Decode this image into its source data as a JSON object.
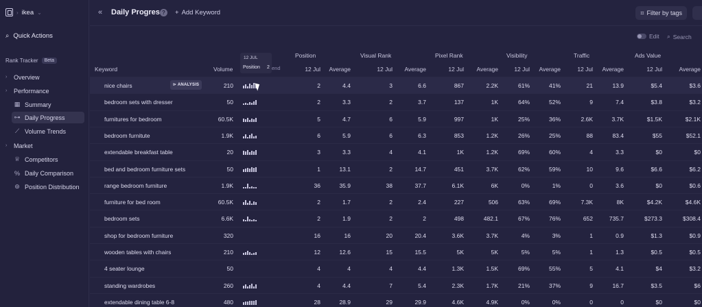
{
  "sidebar": {
    "workspace": "ikea",
    "quick_actions": "Quick Actions",
    "section": "Rank Tracker",
    "section_badge": "Beta",
    "items": [
      {
        "label": "Overview",
        "type": "group"
      },
      {
        "label": "Performance",
        "type": "group"
      },
      {
        "label": "Summary",
        "type": "link"
      },
      {
        "label": "Daily Progress",
        "type": "link"
      },
      {
        "label": "Volume Trends",
        "type": "link"
      },
      {
        "label": "Market",
        "type": "group"
      },
      {
        "label": "Competitors",
        "type": "link"
      },
      {
        "label": "Daily Comparison",
        "type": "link"
      },
      {
        "label": "Position Distribution",
        "type": "link"
      }
    ]
  },
  "header": {
    "title": "Daily Progress",
    "add_keyword": "Add Keyword",
    "filter": "Filter by tags"
  },
  "toolbar": {
    "edit": "Edit",
    "search": "Search"
  },
  "table": {
    "keyword_header": "Keyword",
    "volume_header": "Volume",
    "trend_popup": {
      "date": "12 JUL",
      "label": "Position",
      "value": "2"
    },
    "trend_label": "end",
    "groups": [
      "Position",
      "Visual Rank",
      "Pixel Rank",
      "Visibility",
      "Traffic",
      "Ads Value"
    ],
    "sub_date": "12 Jul",
    "sub_avg": "Average",
    "analysis_badge": "ANALYSIS",
    "rows": [
      {
        "kw": "nice chairs",
        "vol": "210",
        "v": [
          "2",
          "4.4",
          "3",
          "6.6",
          "867",
          "2.2K",
          "61%",
          "41%",
          "21",
          "13.9",
          "$5.4",
          "$3.6"
        ]
      },
      {
        "kw": "bedroom sets with dresser",
        "vol": "50",
        "v": [
          "2",
          "3.3",
          "2",
          "3.7",
          "137",
          "1K",
          "64%",
          "52%",
          "9",
          "7.4",
          "$3.8",
          "$3.2"
        ]
      },
      {
        "kw": "furnitures for bedroom",
        "vol": "60.5K",
        "v": [
          "5",
          "4.7",
          "6",
          "5.9",
          "997",
          "1K",
          "25%",
          "36%",
          "2.6K",
          "3.7K",
          "$1.5K",
          "$2.1K"
        ]
      },
      {
        "kw": "bedroom furnitute",
        "vol": "1.9K",
        "v": [
          "6",
          "5.9",
          "6",
          "6.3",
          "853",
          "1.2K",
          "26%",
          "25%",
          "88",
          "83.4",
          "$55",
          "$52.1"
        ]
      },
      {
        "kw": "extendable breakfast table",
        "vol": "20",
        "v": [
          "3",
          "3.3",
          "4",
          "4.1",
          "1K",
          "1.2K",
          "69%",
          "60%",
          "4",
          "3.3",
          "$0",
          "$0"
        ]
      },
      {
        "kw": "bed and bedroom furniture sets",
        "vol": "50",
        "v": [
          "1",
          "13.1",
          "2",
          "14.7",
          "451",
          "3.7K",
          "62%",
          "59%",
          "10",
          "9.6",
          "$6.6",
          "$6.2"
        ]
      },
      {
        "kw": "range bedroom furniture",
        "vol": "1.9K",
        "v": [
          "36",
          "35.9",
          "38",
          "37.7",
          "6.1K",
          "6K",
          "0%",
          "1%",
          "0",
          "3.6",
          "$0",
          "$0.6"
        ]
      },
      {
        "kw": "furniture for bed room",
        "vol": "60.5K",
        "v": [
          "2",
          "1.7",
          "2",
          "2.4",
          "227",
          "506",
          "63%",
          "69%",
          "7.3K",
          "8K",
          "$4.2K",
          "$4.6K"
        ]
      },
      {
        "kw": "bedroom sets",
        "vol": "6.6K",
        "v": [
          "2",
          "1.9",
          "2",
          "2",
          "498",
          "482.1",
          "67%",
          "76%",
          "652",
          "735.7",
          "$273.3",
          "$308.4"
        ]
      },
      {
        "kw": "shop for bedroom furniture",
        "vol": "320",
        "v": [
          "16",
          "16",
          "20",
          "20.4",
          "3.6K",
          "3.7K",
          "4%",
          "3%",
          "1",
          "0.9",
          "$1.3",
          "$0.9"
        ]
      },
      {
        "kw": "wooden tables with chairs",
        "vol": "210",
        "v": [
          "12",
          "12.6",
          "15",
          "15.5",
          "5K",
          "5K",
          "5%",
          "5%",
          "1",
          "1.3",
          "$0.5",
          "$0.5"
        ]
      },
      {
        "kw": "4 seater lounge",
        "vol": "50",
        "v": [
          "4",
          "4",
          "4",
          "4.4",
          "1.3K",
          "1.5K",
          "69%",
          "55%",
          "5",
          "4.1",
          "$4",
          "$3.2"
        ]
      },
      {
        "kw": "standing wardrobes",
        "vol": "260",
        "v": [
          "4",
          "4.4",
          "7",
          "5.4",
          "2.3K",
          "1.7K",
          "21%",
          "37%",
          "9",
          "16.7",
          "$3.5",
          "$6"
        ]
      },
      {
        "kw": "extendable dining table 6-8",
        "vol": "480",
        "v": [
          "28",
          "28.9",
          "29",
          "29.9",
          "4.6K",
          "4.9K",
          "0%",
          "0%",
          "0",
          "0",
          "$0",
          "$0"
        ]
      }
    ]
  }
}
